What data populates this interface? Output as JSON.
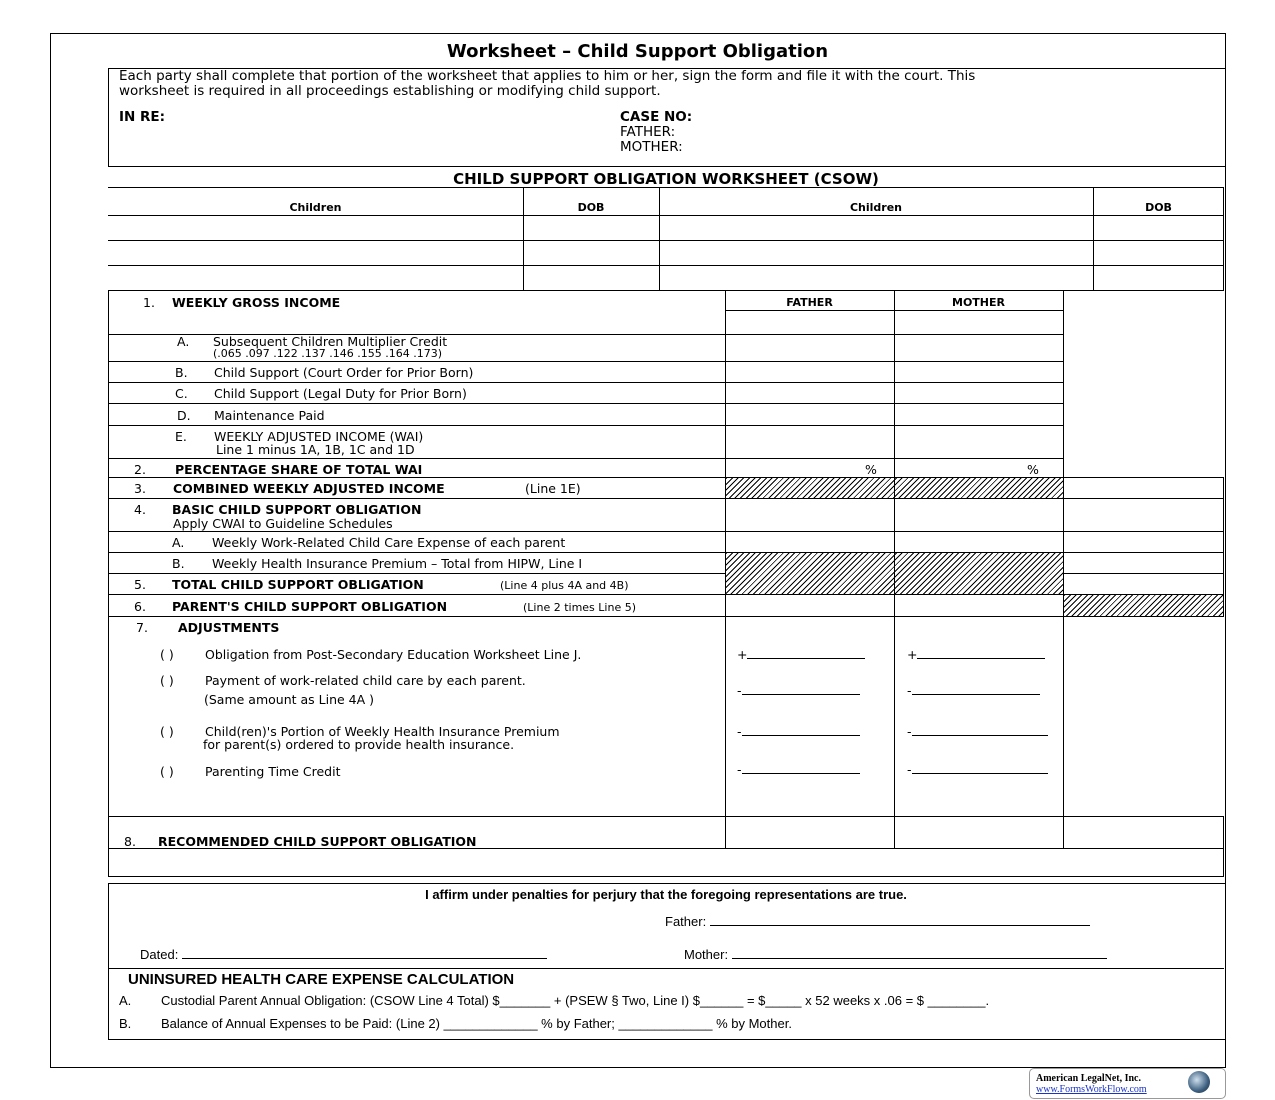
{
  "title": "Worksheet – Child Support Obligation",
  "intro": {
    "line1": "Each party shall complete that portion of the worksheet that applies to him or her, sign the form and file it with the court.  This",
    "line2": "worksheet is required in all proceedings establishing or modifying child support.",
    "in_re": "IN RE:",
    "case_no": "CASE NO:",
    "father": "FATHER:",
    "mother": "MOTHER:"
  },
  "csow_title": "CHILD SUPPORT OBLIGATION WORKSHEET (CSOW)",
  "children_table": {
    "headers": [
      "Children",
      "DOB",
      "Children",
      "DOB"
    ]
  },
  "columns": {
    "father": "FATHER",
    "mother": "MOTHER"
  },
  "lines": {
    "l1": {
      "num": "1.",
      "label": "WEEKLY GROSS INCOME"
    },
    "l1a": {
      "num": "A.",
      "label": "Subsequent Children Multiplier Credit",
      "sub": "(.065 .097 .122 .137 .146 .155 .164 .173)"
    },
    "l1b": {
      "num": "B.",
      "label": "Child Support (Court Order for Prior Born)"
    },
    "l1c": {
      "num": "C.",
      "label": "Child Support (Legal Duty for Prior Born)"
    },
    "l1d": {
      "num": "D.",
      "label": "Maintenance Paid"
    },
    "l1e": {
      "num": "E.",
      "label": "WEEKLY ADJUSTED INCOME (WAI)",
      "sub": "Line 1 minus 1A, 1B, 1C and 1D"
    },
    "l2": {
      "num": "2.",
      "label": "PERCENTAGE SHARE OF TOTAL WAI",
      "pct": "%"
    },
    "l3": {
      "num": "3.",
      "label": "COMBINED WEEKLY ADJUSTED INCOME",
      "note": "(Line 1E)"
    },
    "l4": {
      "num": "4.",
      "label": "BASIC CHILD SUPPORT OBLIGATION",
      "sub": "Apply CWAI to Guideline Schedules"
    },
    "l4a": {
      "num": "A.",
      "label": "Weekly Work-Related Child Care Expense of each parent"
    },
    "l4b": {
      "num": "B.",
      "label": "Weekly Health Insurance Premium – Total from HIPW, Line I"
    },
    "l5": {
      "num": "5.",
      "label": "TOTAL CHILD SUPPORT OBLIGATION",
      "note": "(Line 4 plus 4A and 4B)"
    },
    "l6": {
      "num": "6.",
      "label": "PARENT'S CHILD SUPPORT OBLIGATION",
      "note": "(Line 2 times Line 5)"
    },
    "l7": {
      "num": "7.",
      "label": "ADJUSTMENTS"
    },
    "l8": {
      "num": "8.",
      "label": "RECOMMENDED CHILD SUPPORT OBLIGATION"
    }
  },
  "adjustments": [
    {
      "paren": "(      )",
      "label": "Obligation from Post-Secondary Education Worksheet Line J.",
      "sign": "+"
    },
    {
      "paren": "(      )",
      "label": "Payment of work-related child care by each parent.",
      "sub": "(Same amount as Line 4A )",
      "sign": "-"
    },
    {
      "paren": "(      )",
      "label": "Child(ren)'s Portion of Weekly Health Insurance Premium",
      "sub": "for parent(s) ordered to provide health insurance.",
      "sign": "-"
    },
    {
      "paren": "(      )",
      "label": "Parenting Time Credit",
      "sign": "-"
    }
  ],
  "affirm": {
    "text": "I affirm under penalties for perjury that the foregoing representations are true.",
    "father": "Father:",
    "mother": "Mother:",
    "dated": "Dated:"
  },
  "uninsured": {
    "title": "UNINSURED HEALTH CARE EXPENSE CALCULATION",
    "a_num": "A.",
    "a_text": "Custodial Parent Annual Obligation: (CSOW Line 4 Total) $_______ + (PSEW § Two, Line I) $______ = $_____ x  52 weeks x .06 = $ ________.",
    "b_num": "B.",
    "b_text": "Balance of Annual Expenses to be Paid:   (Line 2) _____________ % by Father; _____________ % by Mother."
  },
  "footer": {
    "company": "American LegalNet, Inc.",
    "url": "www.FormsWorkFlow.com"
  }
}
